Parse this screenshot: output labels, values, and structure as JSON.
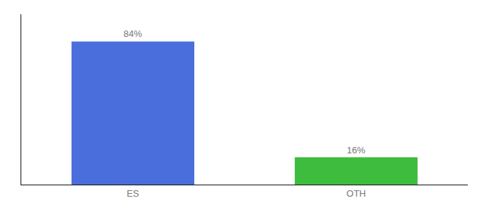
{
  "chart_data": {
    "type": "bar",
    "categories": [
      "ES",
      "OTH"
    ],
    "values": [
      84,
      16
    ],
    "value_labels": [
      "84%",
      "16%"
    ],
    "data_labels": true,
    "colors": [
      "#4a6edb",
      "#3dbc3d"
    ],
    "ylim": [
      0,
      100
    ],
    "grid": false,
    "tick_labels": "x"
  }
}
